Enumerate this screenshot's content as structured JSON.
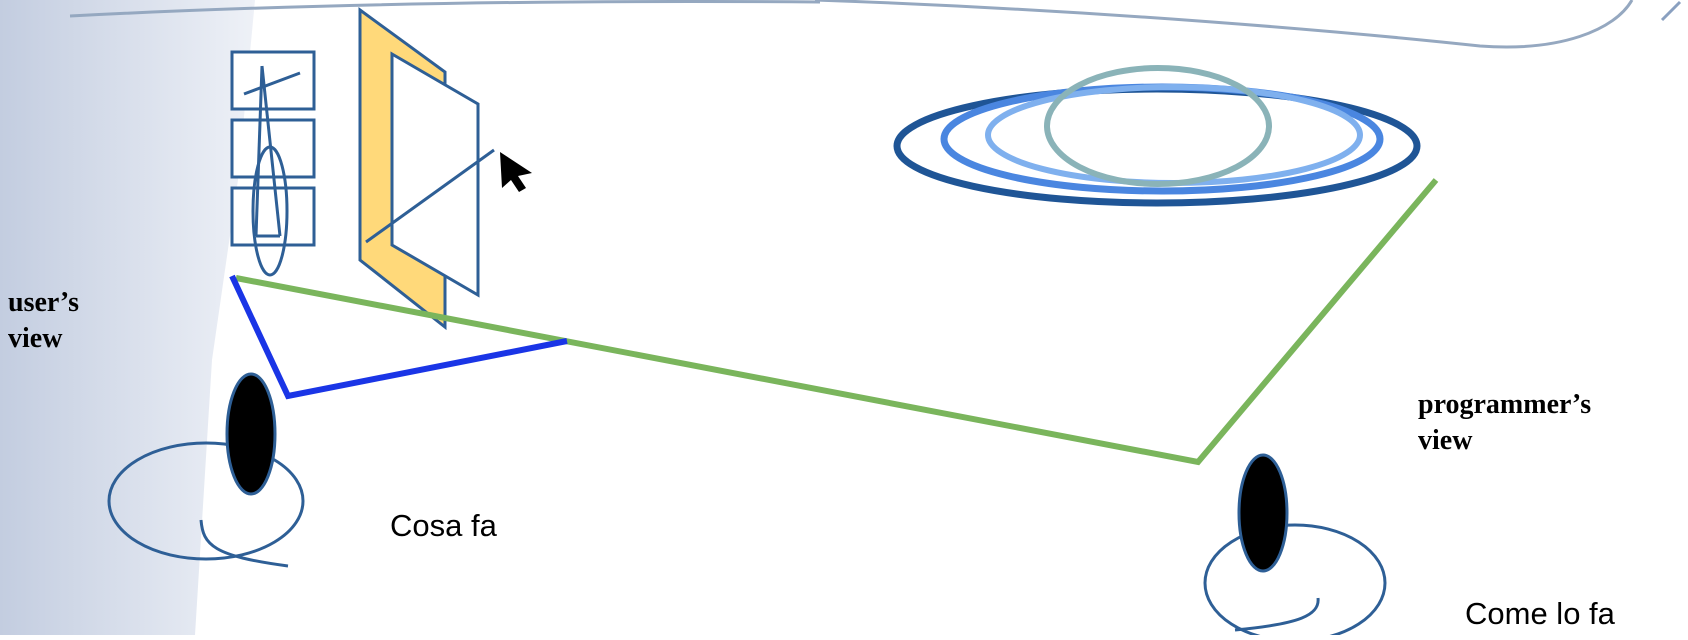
{
  "labels": {
    "user_view_line1": "user’s",
    "user_view_line2": "view",
    "programmer_view_line1": "programmer’s",
    "programmer_view_line2": "view",
    "user_caption": "Cosa fa",
    "programmer_caption": "Come lo fa"
  },
  "colors": {
    "connector_green": "#7ab55c",
    "connector_blue": "#1a35e6",
    "outline_blue": "#2e5f96",
    "frame_yellow": "#ffd97a",
    "ring_dark": "#1f5596",
    "ring_mid": "#4a86e0",
    "ring_light": "#7fb0ee",
    "ring_teal": "#8ab3b8",
    "top_curve": "#95a8c0",
    "band_left": "#c7d1e2"
  },
  "icons": [
    "mouse-cursor-icon",
    "user-figure-icon",
    "programmer-figure-icon"
  ]
}
